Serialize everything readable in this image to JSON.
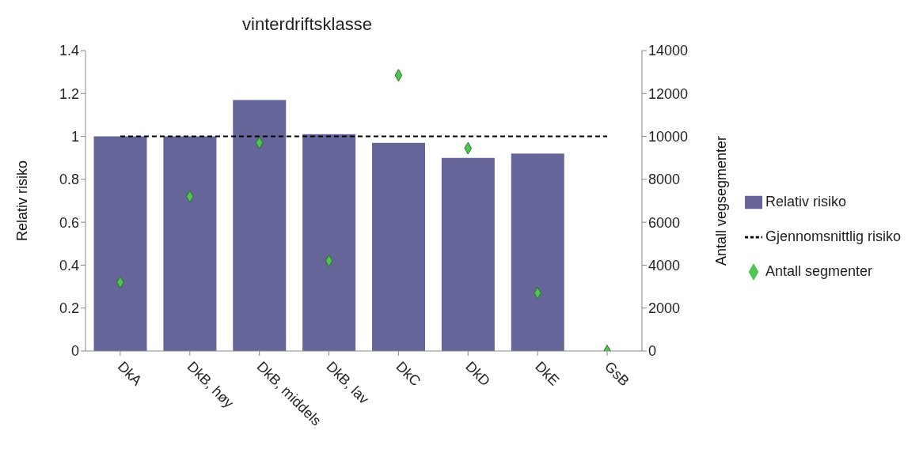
{
  "chart_data": {
    "type": "bar",
    "title": "vinterdriftsklasse",
    "ylabel": "Relativ risiko",
    "y2label": "Antall vegsegmenter",
    "categories": [
      "DkA",
      "DkB, høy",
      "DkB, middels",
      "DkB, lav",
      "DkC",
      "DkD",
      "DkE",
      "GsB"
    ],
    "series": [
      {
        "name": "Relativ risiko",
        "color": "#65659a",
        "values": [
          1.0,
          1.0,
          1.17,
          1.01,
          0.97,
          0.9,
          0.92,
          null
        ]
      },
      {
        "name": "Gjennomsnittlig risiko",
        "type": "line",
        "color": "#000000",
        "line_style": "dashed",
        "marker": "none",
        "values": [
          1,
          1,
          1,
          1,
          1,
          1,
          1,
          1
        ]
      },
      {
        "name": "Antall segmenter",
        "type": "scatter",
        "color": "#4fc54f",
        "marker": "diamond",
        "axis": "y2",
        "values": [
          3200,
          7200,
          9700,
          4200,
          12850,
          9450,
          2700,
          0
        ]
      }
    ],
    "ylim": [
      0,
      1.4
    ],
    "yticks": [
      0,
      0.2,
      0.4,
      0.6,
      0.8,
      1,
      1.2,
      1.4
    ],
    "y2lim": [
      0,
      14000
    ],
    "y2ticks": [
      0,
      2000,
      4000,
      6000,
      8000,
      10000,
      12000,
      14000
    ],
    "grid": false,
    "legend": "right"
  }
}
